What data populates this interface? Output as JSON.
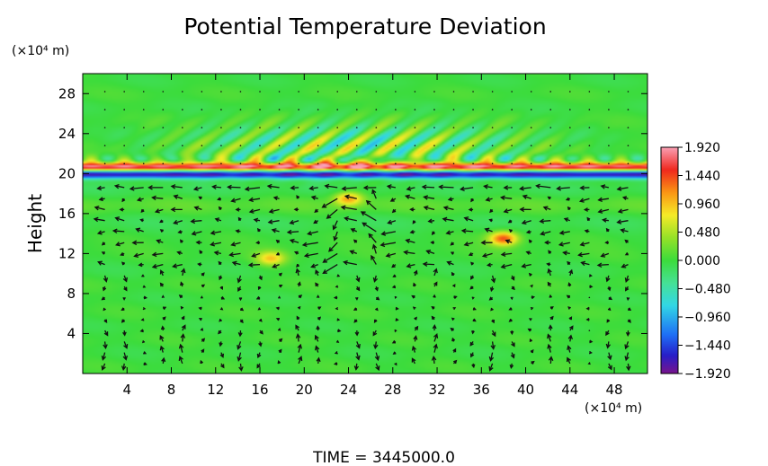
{
  "chart_data": {
    "type": "heatmap",
    "title": "Potential Temperature Deviation",
    "ylabel": "Height",
    "x_unit": "(×10⁴ m)",
    "y_unit": "(×10⁴ m)",
    "footer": "TIME = 3445000.0",
    "xlim": [
      0,
      51
    ],
    "ylim": [
      0,
      30
    ],
    "x_ticks": [
      "4",
      "8",
      "12",
      "16",
      "20",
      "24",
      "28",
      "32",
      "36",
      "40",
      "44",
      "48"
    ],
    "y_ticks": [
      "4",
      "8",
      "12",
      "16",
      "20",
      "24",
      "28"
    ],
    "colorbar": {
      "min": -1.92,
      "max": 1.92,
      "labels": [
        "1.920",
        "1.440",
        "0.960",
        "0.480",
        "0.000",
        "−0.480",
        "−0.960",
        "−1.440",
        "−1.920"
      ]
    },
    "background_value": 0.0,
    "features": [
      {
        "kind": "inversion_band",
        "height": 20.3,
        "amplitude_top": 1.9,
        "amplitude_bottom": -1.9
      },
      {
        "kind": "gravity_waves",
        "height_min": 20.5,
        "height_max": 25,
        "amplitude": 0.9
      },
      {
        "kind": "anomaly",
        "x": 24,
        "y": 17.5,
        "value": 1.1
      },
      {
        "kind": "anomaly",
        "x": 38,
        "y": 13.5,
        "value": 1.4
      },
      {
        "kind": "anomaly",
        "x": 17,
        "y": 11.5,
        "value": 0.9
      }
    ],
    "vectors": "wind field arrows overlaid on the deviation field"
  }
}
